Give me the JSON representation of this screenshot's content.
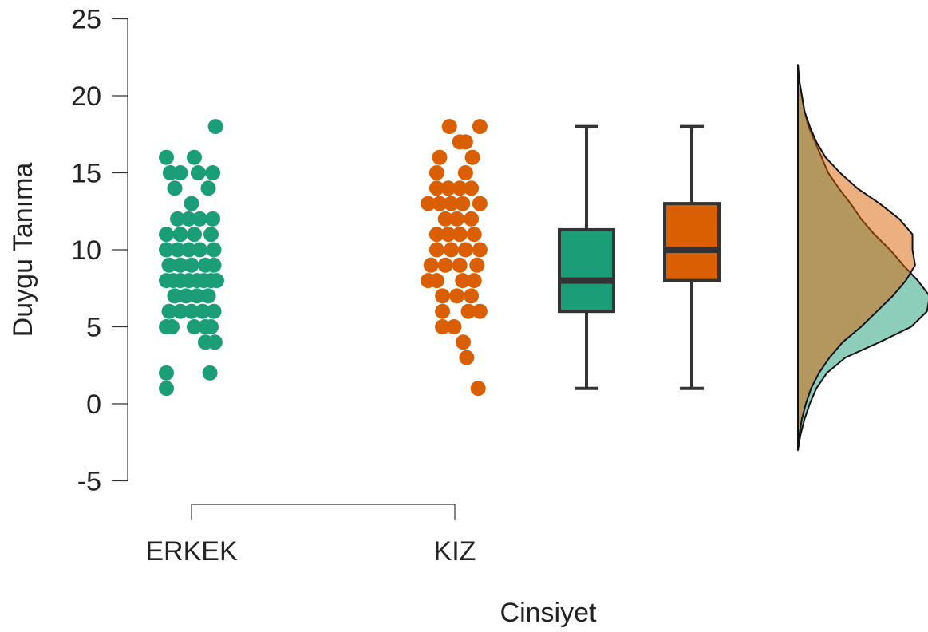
{
  "chart_data": {
    "type": "raincloud",
    "xlabel": "Cinsiyet",
    "ylabel": "Duygu Tanıma",
    "ylim": [
      -5,
      25
    ],
    "yticks": [
      "-5",
      "0",
      "5",
      "10",
      "15",
      "20",
      "25"
    ],
    "categories": [
      "ERKEK",
      "KIZ"
    ],
    "colors": {
      "ERKEK": "#1b9e77",
      "KIZ": "#d95f02",
      "box_line": "#333333"
    },
    "groups": [
      {
        "name": "ERKEK",
        "points": [
          [
            0.05,
            1
          ],
          [
            0.05,
            2
          ],
          [
            0.83,
            2
          ],
          [
            0.05,
            5
          ],
          [
            0.15,
            5
          ],
          [
            0.55,
            5
          ],
          [
            0.75,
            5
          ],
          [
            0.85,
            5
          ],
          [
            0.1,
            6
          ],
          [
            0.3,
            6
          ],
          [
            0.5,
            6
          ],
          [
            0.7,
            6
          ],
          [
            0.9,
            6
          ],
          [
            0.75,
            4
          ],
          [
            0.92,
            4
          ],
          [
            0.2,
            7
          ],
          [
            0.4,
            7
          ],
          [
            0.6,
            7
          ],
          [
            0.8,
            7
          ],
          [
            0.05,
            8
          ],
          [
            0.17,
            8
          ],
          [
            0.3,
            8
          ],
          [
            0.45,
            8
          ],
          [
            0.6,
            8
          ],
          [
            0.72,
            8
          ],
          [
            0.85,
            8
          ],
          [
            0.95,
            8
          ],
          [
            0.1,
            9
          ],
          [
            0.3,
            9
          ],
          [
            0.5,
            9
          ],
          [
            0.75,
            9
          ],
          [
            0.9,
            9
          ],
          [
            0.05,
            10
          ],
          [
            0.25,
            10
          ],
          [
            0.45,
            10
          ],
          [
            0.65,
            10
          ],
          [
            0.9,
            10
          ],
          [
            0.05,
            11
          ],
          [
            0.3,
            11
          ],
          [
            0.55,
            11
          ],
          [
            0.85,
            11
          ],
          [
            0.25,
            12
          ],
          [
            0.45,
            12
          ],
          [
            0.65,
            12
          ],
          [
            0.88,
            12
          ],
          [
            0.5,
            13
          ],
          [
            0.2,
            14
          ],
          [
            0.8,
            14
          ],
          [
            0.12,
            15
          ],
          [
            0.3,
            15
          ],
          [
            0.62,
            15
          ],
          [
            0.88,
            15
          ],
          [
            0.05,
            16
          ],
          [
            0.55,
            16
          ],
          [
            0.93,
            18
          ]
        ],
        "box": {
          "min": 1,
          "q1": 6,
          "median": 8,
          "q3": 11.3,
          "max": 18
        }
      },
      {
        "name": "KIZ",
        "points": [
          [
            0.92,
            1
          ],
          [
            0.72,
            3
          ],
          [
            0.66,
            4
          ],
          [
            0.3,
            5
          ],
          [
            0.5,
            5
          ],
          [
            0.3,
            6
          ],
          [
            0.75,
            6
          ],
          [
            0.95,
            6
          ],
          [
            0.3,
            7
          ],
          [
            0.55,
            7
          ],
          [
            0.8,
            7
          ],
          [
            0.05,
            8
          ],
          [
            0.2,
            8
          ],
          [
            0.65,
            8
          ],
          [
            0.85,
            8
          ],
          [
            0.1,
            9
          ],
          [
            0.35,
            9
          ],
          [
            0.6,
            9
          ],
          [
            0.9,
            9
          ],
          [
            0.2,
            10
          ],
          [
            0.45,
            10
          ],
          [
            0.7,
            10
          ],
          [
            0.95,
            10
          ],
          [
            0.2,
            11
          ],
          [
            0.4,
            11
          ],
          [
            0.6,
            11
          ],
          [
            0.85,
            11
          ],
          [
            0.35,
            12
          ],
          [
            0.55,
            12
          ],
          [
            0.8,
            12
          ],
          [
            0.05,
            13
          ],
          [
            0.25,
            13
          ],
          [
            0.45,
            13
          ],
          [
            0.65,
            13
          ],
          [
            0.95,
            13
          ],
          [
            0.2,
            14
          ],
          [
            0.4,
            14
          ],
          [
            0.6,
            14
          ],
          [
            0.8,
            14
          ],
          [
            0.2,
            15
          ],
          [
            0.7,
            15
          ],
          [
            0.25,
            16
          ],
          [
            0.82,
            16
          ],
          [
            0.6,
            17
          ],
          [
            0.7,
            17
          ],
          [
            0.42,
            18
          ],
          [
            0.95,
            18
          ]
        ],
        "box": {
          "min": 1,
          "q1": 8,
          "median": 10,
          "q3": 13,
          "max": 18
        }
      }
    ],
    "density": {
      "y": [
        -3,
        -2,
        -1,
        0,
        1,
        2,
        3,
        4,
        5,
        6,
        7,
        8,
        9,
        10,
        11,
        12,
        13,
        14,
        15,
        16,
        17,
        18,
        19,
        20,
        21,
        22
      ],
      "ERKEK": [
        0,
        0.02,
        0.05,
        0.09,
        0.14,
        0.22,
        0.36,
        0.62,
        0.86,
        0.98,
        1.0,
        0.91,
        0.8,
        0.7,
        0.58,
        0.48,
        0.4,
        0.31,
        0.23,
        0.18,
        0.13,
        0.08,
        0.05,
        0.03,
        0.01,
        0
      ],
      "KIZ": [
        0,
        0.01,
        0.03,
        0.06,
        0.1,
        0.16,
        0.24,
        0.34,
        0.48,
        0.6,
        0.72,
        0.82,
        0.89,
        0.87,
        0.87,
        0.77,
        0.62,
        0.45,
        0.32,
        0.21,
        0.14,
        0.09,
        0.05,
        0.03,
        0.01,
        0
      ]
    }
  }
}
